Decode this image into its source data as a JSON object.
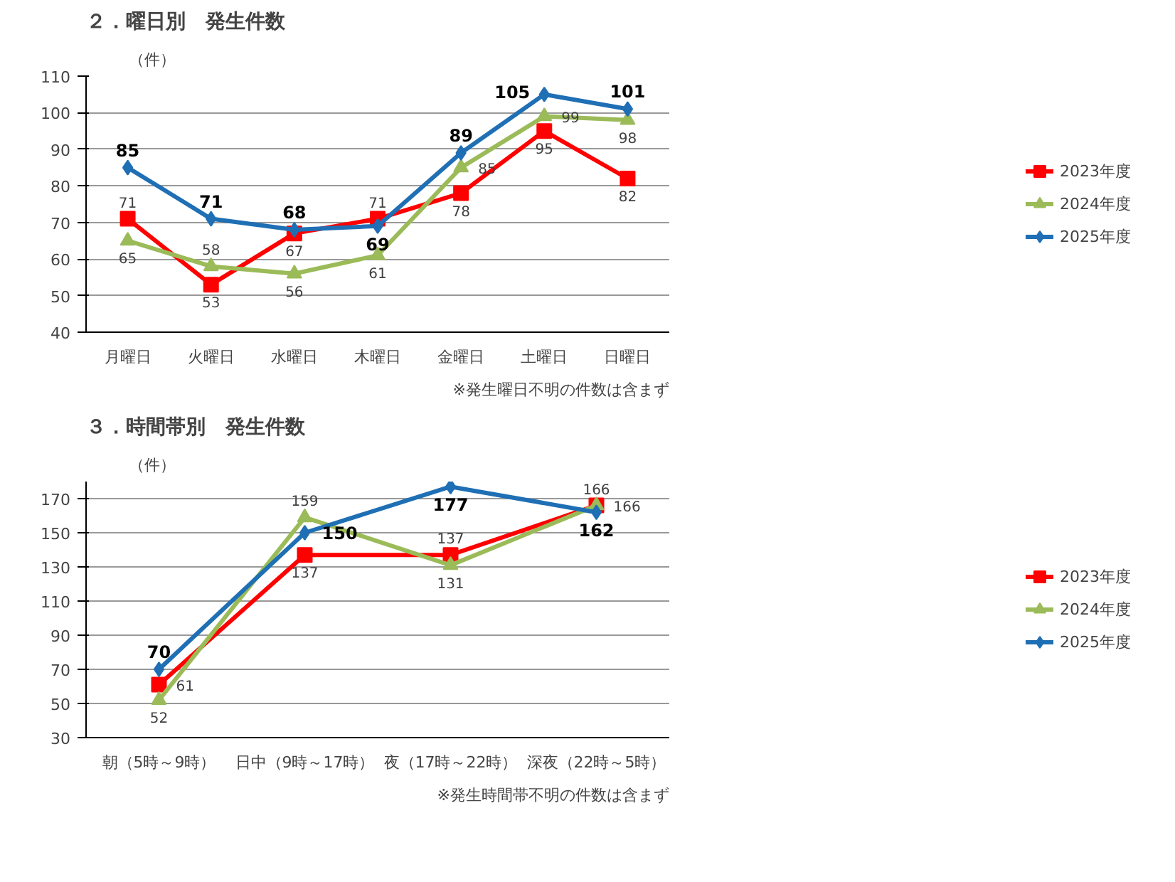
{
  "chart_data": [
    {
      "type": "line",
      "title": "２．曜日別　発生件数",
      "ylabel": "（件）",
      "categories": [
        "月曜日",
        "火曜日",
        "水曜日",
        "木曜日",
        "金曜日",
        "土曜日",
        "日曜日"
      ],
      "ylim": [
        40,
        110
      ],
      "yticks": [
        40,
        50,
        60,
        70,
        80,
        90,
        100,
        110
      ],
      "grid": "y",
      "legend": "right",
      "data_labels": true,
      "annotations": [
        "※発生曜日不明の件数は含まず"
      ],
      "series": [
        {
          "name": "2023年度",
          "color": "#ff0000",
          "marker": "square",
          "values": [
            71,
            53,
            67,
            71,
            78,
            95,
            82
          ]
        },
        {
          "name": "2024年度",
          "color": "#9bbb59",
          "marker": "triangle",
          "values": [
            65,
            58,
            56,
            61,
            85,
            99,
            98
          ]
        },
        {
          "name": "2025年度",
          "color": "#1f6fb5",
          "marker": "diamond",
          "values": [
            85,
            71,
            68,
            69,
            89,
            105,
            101
          ]
        }
      ]
    },
    {
      "type": "line",
      "title": "３．時間帯別　発生件数",
      "ylabel": "（件）",
      "categories": [
        "朝（5時～9時）",
        "日中（9時～17時）",
        "夜（17時～22時）",
        "深夜（22時～5時）"
      ],
      "ylim": [
        30,
        180
      ],
      "yticks": [
        30,
        50,
        70,
        90,
        110,
        130,
        150,
        170
      ],
      "grid": "y",
      "legend": "right",
      "data_labels": true,
      "annotations": [
        "※発生時間帯不明の件数は含まず"
      ],
      "series": [
        {
          "name": "2023年度",
          "color": "#ff0000",
          "marker": "square",
          "values": [
            61,
            137,
            137,
            166
          ]
        },
        {
          "name": "2024年度",
          "color": "#9bbb59",
          "marker": "triangle",
          "values": [
            52,
            159,
            131,
            166
          ]
        },
        {
          "name": "2025年度",
          "color": "#1f6fb5",
          "marker": "diamond",
          "values": [
            70,
            150,
            177,
            162
          ]
        }
      ]
    }
  ]
}
